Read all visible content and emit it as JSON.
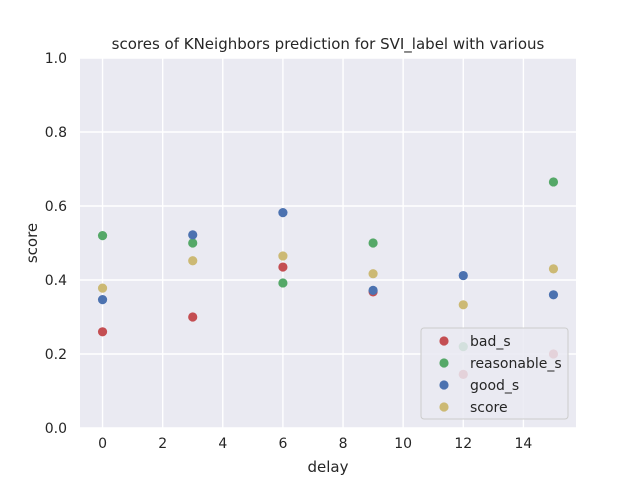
{
  "chart_data": {
    "type": "scatter",
    "title": "scores of KNeighbors prediction for SVI_label with various",
    "xlabel": "delay",
    "ylabel": "score",
    "xlim": [
      -0.75,
      15.75
    ],
    "ylim": [
      0.0,
      1.0
    ],
    "xticks": [
      0,
      2,
      4,
      6,
      8,
      10,
      12,
      14
    ],
    "yticks": [
      0.0,
      0.2,
      0.4,
      0.6,
      0.8,
      1.0
    ],
    "grid": true,
    "legend_position": "lower-right",
    "series": [
      {
        "name": "bad_s",
        "color": "#c44e52",
        "points": [
          [
            0,
            0.26
          ],
          [
            3,
            0.3
          ],
          [
            6,
            0.435
          ],
          [
            9,
            0.368
          ],
          [
            12,
            0.145
          ],
          [
            15,
            0.2
          ]
        ]
      },
      {
        "name": "reasonable_s",
        "color": "#55a868",
        "points": [
          [
            0,
            0.52
          ],
          [
            3,
            0.5
          ],
          [
            6,
            0.392
          ],
          [
            9,
            0.5
          ],
          [
            12,
            0.22
          ],
          [
            15,
            0.665
          ]
        ]
      },
      {
        "name": "good_s",
        "color": "#4c72b0",
        "points": [
          [
            0,
            0.347
          ],
          [
            3,
            0.522
          ],
          [
            6,
            0.582
          ],
          [
            9,
            0.372
          ],
          [
            12,
            0.412
          ],
          [
            15,
            0.36
          ]
        ]
      },
      {
        "name": "score",
        "color": "#ccb974",
        "points": [
          [
            0,
            0.378
          ],
          [
            3,
            0.452
          ],
          [
            6,
            0.465
          ],
          [
            9,
            0.417
          ],
          [
            12,
            0.333
          ],
          [
            15,
            0.43
          ]
        ]
      }
    ]
  }
}
